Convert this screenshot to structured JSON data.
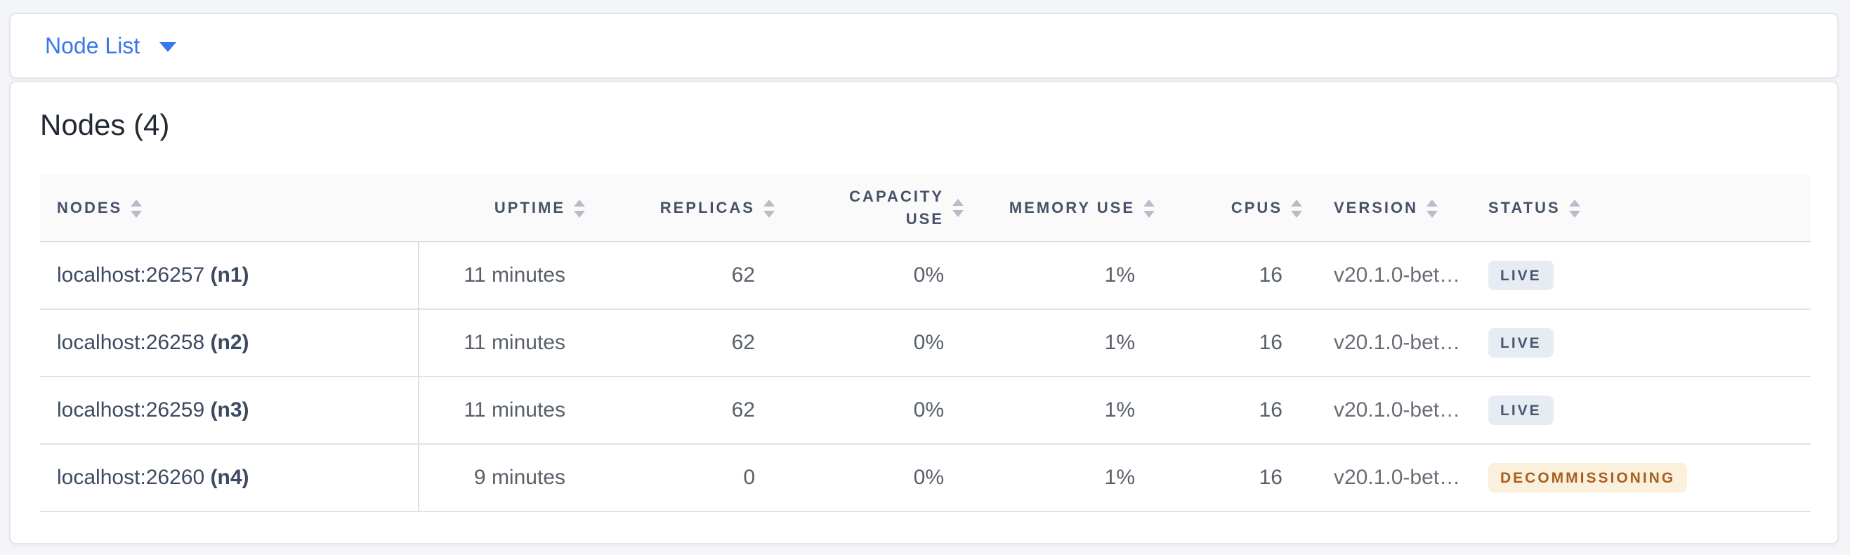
{
  "selector": {
    "label": "Node List",
    "caret_icon": "caret-down-icon",
    "accent_color": "#3a77e7"
  },
  "main": {
    "title": "Nodes (4)",
    "table": {
      "sort_icon": "sort-arrows-icon",
      "columns": [
        {
          "key": "nodes",
          "label": "NODES",
          "align": "left"
        },
        {
          "key": "uptime",
          "label": "UPTIME",
          "align": "right"
        },
        {
          "key": "replicas",
          "label": "REPLICAS",
          "align": "right"
        },
        {
          "key": "capacity_use",
          "label": "CAPACITY USE",
          "align": "right",
          "wrap": true
        },
        {
          "key": "memory_use",
          "label": "MEMORY USE",
          "align": "right"
        },
        {
          "key": "cpus",
          "label": "CPUS",
          "align": "right"
        },
        {
          "key": "version",
          "label": "VERSION",
          "align": "left"
        },
        {
          "key": "status",
          "label": "STATUS",
          "align": "left"
        }
      ],
      "rows": [
        {
          "address": "localhost:26257",
          "node_id": "(n1)",
          "uptime": "11 minutes",
          "replicas": "62",
          "capacity_use": "0%",
          "memory_use": "1%",
          "cpus": "16",
          "version": "v20.1.0-bet…",
          "status": "LIVE",
          "status_type": "live"
        },
        {
          "address": "localhost:26258",
          "node_id": "(n2)",
          "uptime": "11 minutes",
          "replicas": "62",
          "capacity_use": "0%",
          "memory_use": "1%",
          "cpus": "16",
          "version": "v20.1.0-bet…",
          "status": "LIVE",
          "status_type": "live"
        },
        {
          "address": "localhost:26259",
          "node_id": "(n3)",
          "uptime": "11 minutes",
          "replicas": "62",
          "capacity_use": "0%",
          "memory_use": "1%",
          "cpus": "16",
          "version": "v20.1.0-bet…",
          "status": "LIVE",
          "status_type": "live"
        },
        {
          "address": "localhost:26260",
          "node_id": "(n4)",
          "uptime": "9 minutes",
          "replicas": "0",
          "capacity_use": "0%",
          "memory_use": "1%",
          "cpus": "16",
          "version": "v20.1.0-bet…",
          "status": "DECOMMISSIONING",
          "status_type": "decommissioning"
        }
      ]
    }
  },
  "colors": {
    "accent_blue": "#3a77e7",
    "badge_live_bg": "#e7ebf2",
    "badge_live_text": "#475672",
    "badge_decommissioning_bg": "#fbf0dc",
    "badge_decommissioning_text": "#a95e1f"
  }
}
